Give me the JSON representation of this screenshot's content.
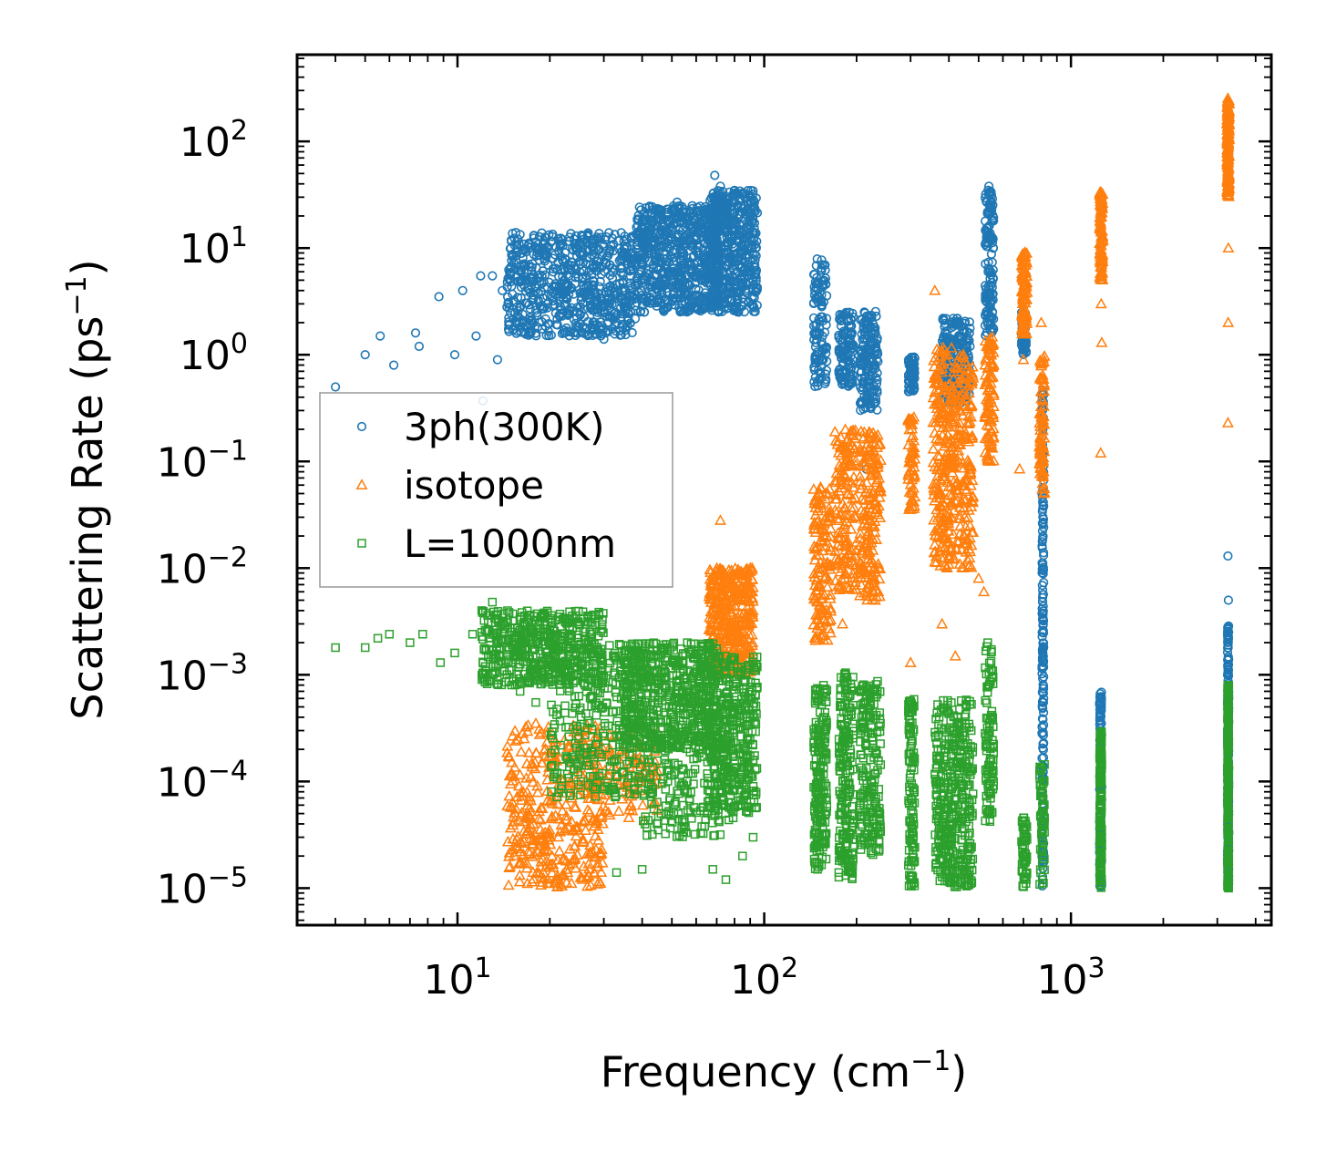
{
  "chart_data": {
    "type": "scatter",
    "title": "",
    "xlabel": "Frequency (cm",
    "xlabel_sup": "−1",
    "xlabel_end": ")",
    "ylabel": "Scattering Rate (ps",
    "ylabel_sup": "−1",
    "ylabel_end": ")",
    "x_scale": "log",
    "y_scale": "log",
    "xlim": [
      3.0,
      4500
    ],
    "ylim": [
      4.5e-06,
      650
    ],
    "x_ticks": [
      {
        "value": 10,
        "base": "10",
        "exp": "1"
      },
      {
        "value": 100,
        "base": "10",
        "exp": "2"
      },
      {
        "value": 1000,
        "base": "10",
        "exp": "3"
      }
    ],
    "y_ticks": [
      {
        "value": 100,
        "base": "10",
        "exp": "2"
      },
      {
        "value": 10,
        "base": "10",
        "exp": "1"
      },
      {
        "value": 1,
        "base": "10",
        "exp": "0"
      },
      {
        "value": 0.1,
        "base": "10",
        "exp": "−1"
      },
      {
        "value": 0.01,
        "base": "10",
        "exp": "−2"
      },
      {
        "value": 0.001,
        "base": "10",
        "exp": "−3"
      },
      {
        "value": 0.0001,
        "base": "10",
        "exp": "−4"
      },
      {
        "value": 1e-05,
        "base": "10",
        "exp": "−5"
      }
    ],
    "legend_position": "center-left",
    "series": [
      {
        "name": "3ph(300K)",
        "marker": "circle",
        "color": "#1f77b4",
        "points": [
          [
            4.0,
            0.5
          ],
          [
            5.0,
            1.0
          ],
          [
            5.6,
            1.5
          ],
          [
            6.2,
            0.8
          ],
          [
            7.3,
            1.6
          ],
          [
            7.5,
            1.2
          ],
          [
            8.7,
            3.5
          ],
          [
            9.8,
            1.0
          ],
          [
            10.4,
            4.0
          ],
          [
            11.5,
            1.5
          ],
          [
            11.9,
            5.5
          ],
          [
            12.1,
            0.37
          ],
          [
            13.0,
            5.5
          ],
          [
            13.5,
            0.9
          ],
          [
            14.0,
            4.0
          ],
          [
            14.5,
            2.8
          ],
          [
            15.5,
            14.0
          ],
          [
            16.0,
            6.0
          ],
          [
            18.0,
            10.0
          ],
          [
            20.5,
            8.0
          ],
          [
            22.0,
            12.0
          ],
          [
            25.0,
            9.0
          ],
          [
            28.0,
            12.0
          ],
          [
            30.0,
            1.4
          ],
          [
            33.0,
            2.0
          ],
          [
            38.0,
            4.5
          ],
          [
            42.0,
            14.0
          ],
          [
            47.0,
            16.0
          ],
          [
            52.0,
            27.0
          ],
          [
            56.0,
            18.0
          ],
          [
            60.0,
            12.0
          ],
          [
            66.0,
            8.0
          ],
          [
            69.0,
            48.0
          ],
          [
            72.0,
            38.0
          ],
          [
            76.0,
            15.0
          ],
          [
            82.0,
            6.0
          ],
          [
            88.0,
            4.5
          ],
          [
            92.0,
            5.0
          ],
          [
            215.0,
            0.085
          ],
          [
            540.0,
            38.0
          ],
          [
            810.0,
            0.1
          ],
          [
            812.0,
            0.003
          ],
          [
            1250.0,
            0.0006
          ],
          [
            3250.0,
            0.013
          ],
          [
            3260.0,
            0.005
          ]
        ],
        "clusters": [
          {
            "x_range": [
              14.5,
              38.0
            ],
            "y_range": [
              1.5,
              14.0
            ],
            "count": 700
          },
          {
            "x_range": [
              38.0,
              72.0
            ],
            "y_range": [
              2.5,
              25.0
            ],
            "count": 700
          },
          {
            "x_range": [
              66.0,
              95.0
            ],
            "y_range": [
              2.5,
              35.0
            ],
            "count": 500
          },
          {
            "x_range": [
              145.0,
              160.0
            ],
            "y_range": [
              0.5,
              8.0
            ],
            "count": 120
          },
          {
            "x_range": [
              175.0,
              195.0
            ],
            "y_range": [
              0.5,
              2.5
            ],
            "count": 120
          },
          {
            "x_range": [
              205.0,
              235.0
            ],
            "y_range": [
              0.3,
              2.6
            ],
            "count": 160
          },
          {
            "x_range": [
              295.0,
              310.0
            ],
            "y_range": [
              0.45,
              1.0
            ],
            "count": 60
          },
          {
            "x_range": [
              380.0,
              470.0
            ],
            "y_range": [
              0.35,
              2.2
            ],
            "count": 200
          },
          {
            "x_range": [
              525.0,
              560.0
            ],
            "y_range": [
              1.5,
              35.0
            ],
            "count": 140
          },
          {
            "x_range": [
              690.0,
              715.0
            ],
            "y_range": [
              1.0,
              2.5
            ],
            "count": 60
          },
          {
            "x_range": [
              805.0,
              815.0
            ],
            "y_range": [
              1e-05,
              0.5
            ],
            "count": 200
          },
          {
            "x_range": [
              1240.0,
              1260.0
            ],
            "y_range": [
              1e-05,
              0.0007
            ],
            "count": 120
          },
          {
            "x_range": [
              3240.0,
              3270.0
            ],
            "y_range": [
              1e-05,
              0.003
            ],
            "count": 200
          }
        ]
      },
      {
        "name": "isotope",
        "marker": "triangle",
        "color": "#ff7f0e",
        "points": [
          [
            72.0,
            0.028
          ],
          [
            90.0,
            0.01
          ],
          [
            300.0,
            0.0013
          ],
          [
            360.0,
            4.0
          ],
          [
            450.0,
            0.02
          ],
          [
            680.0,
            0.085
          ],
          [
            700.0,
            0.9
          ],
          [
            800.0,
            2.0
          ],
          [
            1250.0,
            0.12
          ],
          [
            1260.0,
            1.3
          ],
          [
            1255.0,
            3.0
          ],
          [
            3250.0,
            0.23
          ],
          [
            3255.0,
            2.0
          ],
          [
            3260.0,
            10.0
          ],
          [
            230.0,
            0.005
          ],
          [
            380.0,
            0.003
          ],
          [
            420.0,
            0.0015
          ],
          [
            500.0,
            0.008
          ],
          [
            520.0,
            0.006
          ],
          [
            180.0,
            0.003
          ]
        ],
        "clusters": [
          {
            "x_range": [
              14.5,
              30.0
            ],
            "y_range": [
              1e-05,
              0.00035
            ],
            "count": 400
          },
          {
            "x_range": [
              28.0,
              45.0
            ],
            "y_range": [
              4e-05,
              0.0003
            ],
            "count": 100
          },
          {
            "x_range": [
              66.0,
              92.0
            ],
            "y_range": [
              0.001,
              0.01
            ],
            "count": 400
          },
          {
            "x_range": [
              145.0,
              165.0
            ],
            "y_range": [
              0.002,
              0.06
            ],
            "count": 140
          },
          {
            "x_range": [
              170.0,
              200.0
            ],
            "y_range": [
              0.006,
              0.2
            ],
            "count": 160
          },
          {
            "x_range": [
              205.0,
              240.0
            ],
            "y_range": [
              0.005,
              0.2
            ],
            "count": 180
          },
          {
            "x_range": [
              295.0,
              310.0
            ],
            "y_range": [
              0.03,
              0.3
            ],
            "count": 60
          },
          {
            "x_range": [
              355.0,
              480.0
            ],
            "y_range": [
              0.01,
              1.2
            ],
            "count": 400
          },
          {
            "x_range": [
              525.0,
              560.0
            ],
            "y_range": [
              0.1,
              1.5
            ],
            "count": 100
          },
          {
            "x_range": [
              690.0,
              720.0
            ],
            "y_range": [
              1.5,
              9.5
            ],
            "count": 100
          },
          {
            "x_range": [
              790.0,
              820.0
            ],
            "y_range": [
              0.05,
              1.0
            ],
            "count": 80
          },
          {
            "x_range": [
              1240.0,
              1270.0
            ],
            "y_range": [
              5.0,
              35.0
            ],
            "count": 100
          },
          {
            "x_range": [
              3230.0,
              3280.0
            ],
            "y_range": [
              30.0,
              260.0
            ],
            "count": 150
          }
        ]
      },
      {
        "name": "L=1000nm",
        "marker": "square",
        "color": "#2ca02c",
        "points": [
          [
            4.0,
            0.0018
          ],
          [
            5.0,
            0.0018
          ],
          [
            5.5,
            0.0022
          ],
          [
            6.0,
            0.0024
          ],
          [
            7.0,
            0.002
          ],
          [
            7.7,
            0.0024
          ],
          [
            8.8,
            0.0013
          ],
          [
            9.8,
            0.0016
          ],
          [
            11.2,
            0.0024
          ],
          [
            12.0,
            0.004
          ],
          [
            13.0,
            0.0048
          ],
          [
            16.0,
            0.0007
          ],
          [
            18.0,
            0.00055
          ],
          [
            20.5,
            0.00045
          ],
          [
            33.0,
            1.4e-05
          ],
          [
            40.0,
            1.5e-05
          ],
          [
            45.0,
            4e-05
          ],
          [
            68.0,
            1.5e-05
          ],
          [
            75.0,
            1.2e-05
          ],
          [
            85.0,
            2e-05
          ],
          [
            92.0,
            3e-05
          ],
          [
            175.0,
            1.4e-05
          ],
          [
            300.0,
            1.2e-05
          ],
          [
            440.0,
            1.2e-05
          ]
        ],
        "clusters": [
          {
            "x_range": [
              12.0,
              30.0
            ],
            "y_range": [
              0.0008,
              0.004
            ],
            "count": 500
          },
          {
            "x_range": [
              20.0,
              40.0
            ],
            "y_range": [
              7e-05,
              0.002
            ],
            "count": 300
          },
          {
            "x_range": [
              35.0,
              70.0
            ],
            "y_range": [
              0.0002,
              0.002
            ],
            "count": 600
          },
          {
            "x_range": [
              40.0,
              80.0
            ],
            "y_range": [
              3e-05,
              0.0003
            ],
            "count": 200
          },
          {
            "x_range": [
              65.0,
              95.0
            ],
            "y_range": [
              5e-05,
              0.0015
            ],
            "count": 400
          },
          {
            "x_range": [
              145.0,
              160.0
            ],
            "y_range": [
              1.5e-05,
              0.0008
            ],
            "count": 200
          },
          {
            "x_range": [
              175.0,
              195.0
            ],
            "y_range": [
              1.2e-05,
              0.0011
            ],
            "count": 200
          },
          {
            "x_range": [
              205.0,
              240.0
            ],
            "y_range": [
              2e-05,
              0.0009
            ],
            "count": 200
          },
          {
            "x_range": [
              295.0,
              310.0
            ],
            "y_range": [
              1e-05,
              0.0006
            ],
            "count": 120
          },
          {
            "x_range": [
              360.0,
              480.0
            ],
            "y_range": [
              1e-05,
              0.0006
            ],
            "count": 400
          },
          {
            "x_range": [
              525.0,
              560.0
            ],
            "y_range": [
              4e-05,
              0.002
            ],
            "count": 100
          },
          {
            "x_range": [
              690.0,
              720.0
            ],
            "y_range": [
              1e-05,
              5e-05
            ],
            "count": 60
          },
          {
            "x_range": [
              790.0,
              820.0
            ],
            "y_range": [
              1e-05,
              0.00015
            ],
            "count": 60
          },
          {
            "x_range": [
              1240.0,
              1260.0
            ],
            "y_range": [
              1e-05,
              0.0003
            ],
            "count": 150
          },
          {
            "x_range": [
              3240.0,
              3270.0
            ],
            "y_range": [
              1e-05,
              0.0008
            ],
            "count": 250
          }
        ]
      }
    ]
  }
}
